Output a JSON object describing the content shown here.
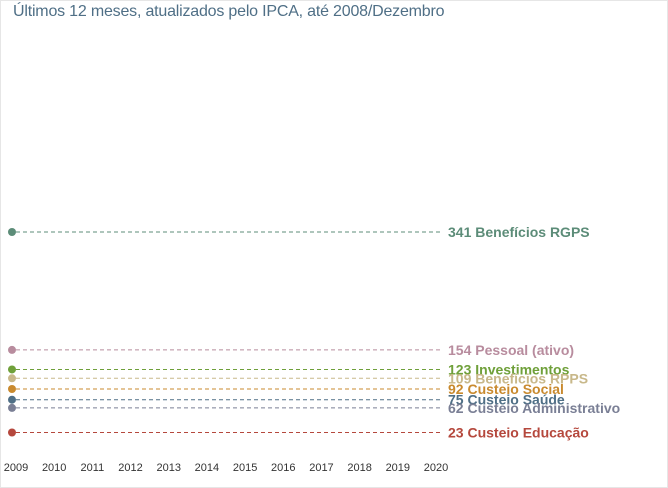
{
  "subtitle": "Últimos 12 meses, atualizados pelo IPCA, até 2008/Dezembro",
  "chart_data": {
    "type": "line",
    "x": [
      2009,
      2010,
      2011,
      2012,
      2013,
      2014,
      2015,
      2016,
      2017,
      2018,
      2019,
      2020
    ],
    "x_tick_labels": [
      "2009",
      "2010",
      "2011",
      "2012",
      "2013",
      "2014",
      "2015",
      "2016",
      "2017",
      "2018",
      "2019",
      "2020"
    ],
    "ylim": [
      0,
      400
    ],
    "grid": false,
    "series": [
      {
        "name": "Benefícios RGPS",
        "value": 341,
        "label": "341 Benefícios RGPS",
        "color": "#5c8c78"
      },
      {
        "name": "Pessoal (ativo)",
        "value": 154,
        "label": "154 Pessoal (ativo)",
        "color": "#b88c9e"
      },
      {
        "name": "Investimentos",
        "value": 123,
        "label": "123 Investimentos",
        "color": "#6fa03a"
      },
      {
        "name": "Benefícios RPPS",
        "value": 109,
        "label": "109 Benefícios RPPS",
        "color": "#c8b88a"
      },
      {
        "name": "Custeio Social",
        "value": 92,
        "label": "92 Custeio Social",
        "color": "#c98a2e"
      },
      {
        "name": "Custeio Saúde",
        "value": 75,
        "label": "75 Custeio Saúde",
        "color": "#4f6f86"
      },
      {
        "name": "Custeio Administrativo",
        "value": 62,
        "label": "62 Custeio Administrativo",
        "color": "#7a7f95"
      },
      {
        "name": "Custeio Educação",
        "value": 23,
        "label": "23 Custeio Educação",
        "color": "#b5483d"
      }
    ]
  }
}
